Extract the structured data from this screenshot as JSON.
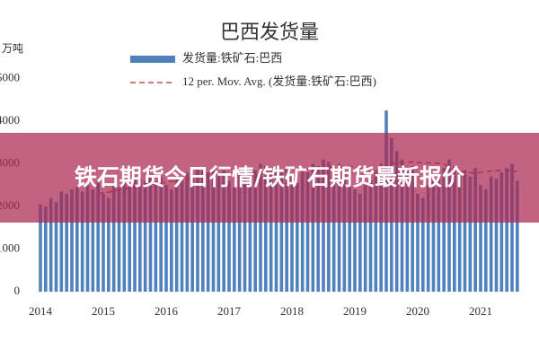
{
  "banner": {
    "title": "铁石期货今日行情/铁矿石期货最新报价"
  },
  "chart_data": {
    "type": "bar",
    "title": "巴西发货量",
    "y_unit": "万吨",
    "categories": [
      "2014",
      null,
      null,
      null,
      null,
      null,
      null,
      null,
      null,
      null,
      null,
      null,
      "2015",
      null,
      null,
      null,
      null,
      null,
      null,
      null,
      null,
      null,
      null,
      null,
      "2016",
      null,
      null,
      null,
      null,
      null,
      null,
      null,
      null,
      null,
      null,
      null,
      "2017",
      null,
      null,
      null,
      null,
      null,
      null,
      null,
      null,
      null,
      null,
      null,
      "2018",
      null,
      null,
      null,
      null,
      null,
      null,
      null,
      null,
      null,
      null,
      null,
      "2019",
      null,
      null,
      null,
      null,
      null,
      null,
      null,
      null,
      null,
      null,
      null,
      "2020",
      null,
      null,
      null,
      null,
      null,
      null,
      null,
      null,
      null,
      null,
      null,
      "2021",
      null,
      null,
      null,
      null,
      null,
      null,
      null
    ],
    "series": [
      {
        "name": "发货量:铁矿石:巴西",
        "color": "#4f81bd",
        "kind": "bar",
        "values": [
          2050,
          2000,
          2200,
          2100,
          2350,
          2300,
          2400,
          2450,
          2350,
          2500,
          2400,
          2550,
          2300,
          2200,
          2500,
          2450,
          2600,
          2550,
          2700,
          2650,
          2600,
          2750,
          2600,
          2700,
          2500,
          2400,
          2700,
          2650,
          2800,
          2750,
          2900,
          2850,
          2800,
          2900,
          2750,
          2850,
          2600,
          2450,
          2750,
          2700,
          2900,
          2850,
          3000,
          2950,
          2850,
          2950,
          2800,
          2900,
          2700,
          2550,
          2850,
          2800,
          3000,
          2950,
          3100,
          3050,
          2900,
          3000,
          2850,
          2950,
          2400,
          2300,
          2500,
          2600,
          2800,
          3000,
          4250,
          3600,
          3300,
          3100,
          2900,
          2950,
          2300,
          2200,
          2500,
          2600,
          2700,
          2900,
          3100,
          2950,
          2800,
          2850,
          2700,
          2900,
          2500,
          2400,
          2700,
          2650,
          2800,
          2900,
          3000,
          2600
        ]
      },
      {
        "name": "12 per. Mov. Avg. (发货量:铁矿石:巴西)",
        "color": "#c0504d",
        "kind": "line",
        "values": [
          null,
          null,
          null,
          null,
          null,
          null,
          null,
          null,
          null,
          null,
          null,
          2300,
          2320,
          2340,
          2360,
          2390,
          2410,
          2430,
          2460,
          2480,
          2500,
          2520,
          2540,
          2550,
          2570,
          2590,
          2610,
          2630,
          2650,
          2670,
          2690,
          2710,
          2730,
          2740,
          2750,
          2760,
          2770,
          2770,
          2780,
          2780,
          2790,
          2800,
          2810,
          2820,
          2820,
          2830,
          2830,
          2840,
          2850,
          2860,
          2870,
          2880,
          2890,
          2900,
          2910,
          2920,
          2920,
          2930,
          2930,
          2940,
          2910,
          2890,
          2860,
          2850,
          2830,
          2840,
          2940,
          2990,
          3020,
          3030,
          3040,
          3040,
          3030,
          3020,
          3020,
          3020,
          3010,
          3000,
          2910,
          2860,
          2820,
          2800,
          2790,
          2780,
          2800,
          2820,
          2830,
          2840,
          2850,
          2850,
          2840,
          2810
        ]
      }
    ],
    "ylim": [
      0,
      6000
    ],
    "yticks": [
      0,
      1000,
      2000,
      3000,
      4000,
      5000
    ]
  }
}
